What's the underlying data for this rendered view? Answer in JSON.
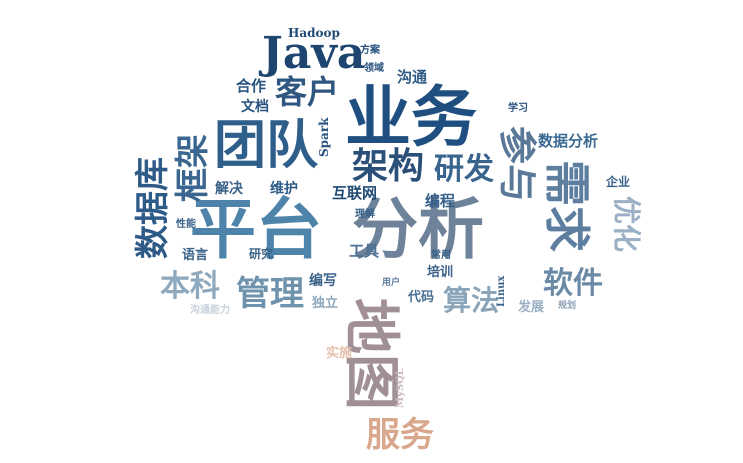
{
  "words": [
    {
      "text": "平台",
      "color": "#4e84aa"
    },
    {
      "text": "分析",
      "color": "#6e8299"
    },
    {
      "text": "业务",
      "color": "#1f4f80"
    },
    {
      "text": "团队",
      "color": "#2e5e8a"
    },
    {
      "text": "需求",
      "color": "#5e7ea0"
    },
    {
      "text": "架构",
      "color": "#2a4f78"
    },
    {
      "text": "研发",
      "color": "#38648e"
    },
    {
      "text": "Java",
      "color": "#1e4470"
    },
    {
      "text": "客户",
      "color": "#2e5680"
    },
    {
      "text": "参与",
      "color": "#5a7898"
    },
    {
      "text": "数据库",
      "color": "#2e5a88"
    },
    {
      "text": "框架",
      "color": "#3a6690"
    },
    {
      "text": "管理",
      "color": "#6f93ad"
    },
    {
      "text": "本科",
      "color": "#8ea8be"
    },
    {
      "text": "软件",
      "color": "#6a8aa6"
    },
    {
      "text": "算法",
      "color": "#8aa4ba"
    },
    {
      "text": "优化",
      "color": "#9bb0c4"
    },
    {
      "text": "地图",
      "color": "#a09095"
    },
    {
      "text": "服务",
      "color": "#d9a78c"
    },
    {
      "text": "数据分析",
      "color": "#3c6a92"
    },
    {
      "text": "互联网",
      "color": "#1f4a74"
    },
    {
      "text": "工具",
      "color": "#4a7094"
    },
    {
      "text": "编写",
      "color": "#3a6288"
    },
    {
      "text": "解决",
      "color": "#3a6288"
    },
    {
      "text": "维护",
      "color": "#2e5a86"
    },
    {
      "text": "编程",
      "color": "#355f88"
    },
    {
      "text": "合作",
      "color": "#2a5480"
    },
    {
      "text": "文档",
      "color": "#2a5480"
    },
    {
      "text": "沟通",
      "color": "#2e5a86"
    },
    {
      "text": "Hadoop",
      "color": "#1f4a74"
    },
    {
      "text": "方案",
      "color": "#2a5480"
    },
    {
      "text": "领域",
      "color": "#2a5480"
    },
    {
      "text": "Spark",
      "color": "#2a5480"
    },
    {
      "text": "学习",
      "color": "#2a5480"
    },
    {
      "text": "企业",
      "color": "#3a6288"
    },
    {
      "text": "性能",
      "color": "#3a6288"
    },
    {
      "text": "语言",
      "color": "#3a6288"
    },
    {
      "text": "研究",
      "color": "#3a6288"
    },
    {
      "text": "理解",
      "color": "#3a6288"
    },
    {
      "text": "常用",
      "color": "#3a6288"
    },
    {
      "text": "培训",
      "color": "#3a6288"
    },
    {
      "text": "Linux",
      "color": "#3a6288"
    },
    {
      "text": "代码",
      "color": "#4a7094"
    },
    {
      "text": "用户",
      "color": "#5e7e9e"
    },
    {
      "text": "发展",
      "color": "#9bb0c4"
    },
    {
      "text": "规划",
      "color": "#8ea2b6"
    },
    {
      "text": "独立",
      "color": "#8ea8be"
    },
    {
      "text": "沟通能力",
      "color": "#c8d2dc"
    },
    {
      "text": "实施",
      "color": "#e6c0ae"
    },
    {
      "text": "MySQL",
      "color": "#c8b8bc"
    }
  ]
}
